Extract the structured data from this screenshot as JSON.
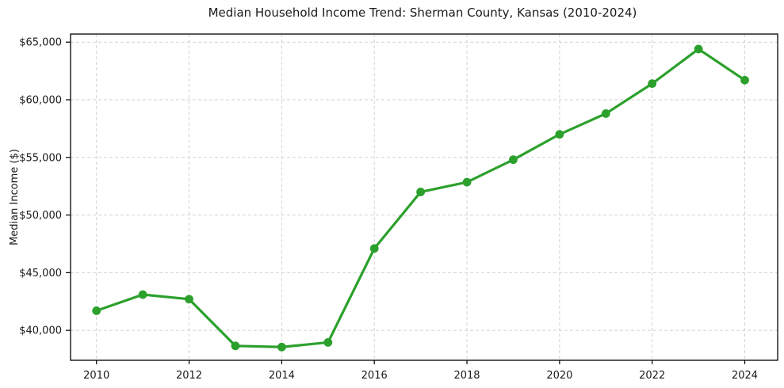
{
  "chart_data": {
    "type": "line",
    "title": "Median Household Income Trend: Sherman County, Kansas (2010-2024)",
    "xlabel": "",
    "ylabel": "Median Income ($)",
    "x": [
      2010,
      2011,
      2012,
      2013,
      2014,
      2015,
      2016,
      2017,
      2018,
      2019,
      2020,
      2021,
      2022,
      2023,
      2024
    ],
    "series": [
      {
        "name": "Median Household Income",
        "values": [
          41700,
          43100,
          42700,
          38650,
          38550,
          38950,
          47100,
          52000,
          52850,
          54800,
          57000,
          58800,
          61400,
          64400,
          61700
        ],
        "color": "#2ca02c",
        "marker": "circle"
      }
    ],
    "xlim": [
      2009.44,
      2024.71
    ],
    "ylim": [
      37400,
      65700
    ],
    "x_ticks": [
      2010,
      2012,
      2014,
      2016,
      2018,
      2020,
      2022,
      2024
    ],
    "x_tick_labels": [
      "2010",
      "2012",
      "2014",
      "2016",
      "2018",
      "2020",
      "2022",
      "2024"
    ],
    "y_ticks": [
      40000,
      45000,
      50000,
      55000,
      60000,
      65000
    ],
    "y_tick_labels": [
      "$40,000",
      "$45,000",
      "$50,000",
      "$55,000",
      "$60,000",
      "$65,000"
    ],
    "grid": true,
    "grid_style": "dashed",
    "legend_position": "none",
    "line_width": 3.2,
    "marker_radius": 5.4,
    "colors": {
      "line": "#2ca02c",
      "grid": "#d2d2d2",
      "spine": "#000000",
      "text": "#1a1a1a",
      "background": "#ffffff"
    }
  }
}
